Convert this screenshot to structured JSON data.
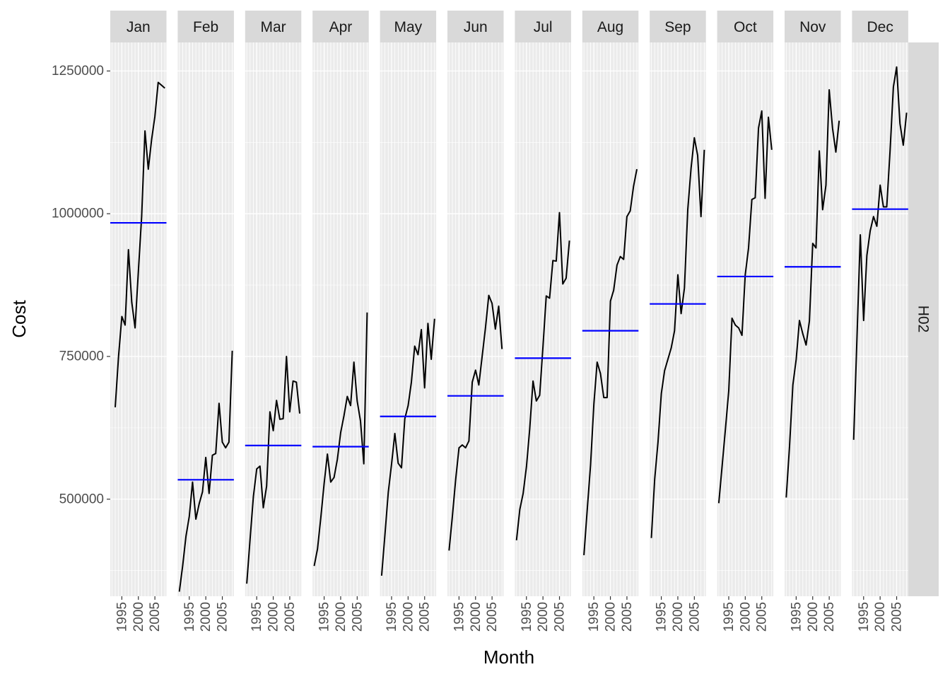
{
  "chart_data": {
    "type": "line",
    "facet_by": "month",
    "xlabel": "Month",
    "ylabel": "Cost",
    "row_strip": "H02",
    "x_tick_labels": [
      "1995",
      "2000",
      "2005"
    ],
    "y_ticks": [
      500000,
      750000,
      1000000,
      1250000
    ],
    "ylim": [
      330000,
      1300000
    ],
    "years": [
      1992,
      1993,
      1994,
      1995,
      1996,
      1997,
      1998,
      1999,
      2000,
      2001,
      2002,
      2003,
      2004,
      2005,
      2006,
      2007,
      2008
    ],
    "xlim": [
      1991.5,
      2008.5
    ],
    "grid": true,
    "line_color": "#000000",
    "mean_color": "#0000ff",
    "panel_bg": "#ebebeb",
    "strip_bg": "#d9d9d9",
    "panels": [
      {
        "month": "Jan",
        "mean": 984000,
        "values": [
          null,
          661000,
          750000,
          820000,
          805000,
          937000,
          845000,
          800000,
          900000,
          995000,
          1145000,
          1078000,
          1130000,
          1170000,
          1230000,
          1225000,
          1220000
        ]
      },
      {
        "month": "Feb",
        "mean": 534000,
        "values": [
          338000,
          383000,
          435000,
          470000,
          530000,
          465000,
          492000,
          513000,
          573000,
          510000,
          577000,
          580000,
          668000,
          600000,
          590000,
          600000,
          760000
        ]
      },
      {
        "month": "Mar",
        "mean": 594000,
        "values": [
          352000,
          430000,
          505000,
          553000,
          558000,
          485000,
          523000,
          653000,
          620000,
          673000,
          640000,
          641000,
          750000,
          653000,
          707000,
          705000,
          650000
        ]
      },
      {
        "month": "Apr",
        "mean": 592000,
        "values": [
          383000,
          413000,
          468000,
          528000,
          579000,
          530000,
          538000,
          570000,
          617000,
          646000,
          680000,
          664000,
          740000,
          672000,
          637000,
          562000,
          827000
        ]
      },
      {
        "month": "May",
        "mean": 645000,
        "values": [
          366000,
          438000,
          512000,
          562000,
          615000,
          563000,
          555000,
          641000,
          664000,
          705000,
          768000,
          753000,
          797000,
          695000,
          808000,
          745000,
          816000
        ]
      },
      {
        "month": "Jun",
        "mean": 681000,
        "values": [
          410000,
          470000,
          535000,
          590000,
          595000,
          590000,
          602000,
          705000,
          726000,
          700000,
          750000,
          800000,
          857000,
          843000,
          798000,
          838000,
          763000
        ]
      },
      {
        "month": "Jul",
        "mean": 747000,
        "values": [
          428000,
          482000,
          510000,
          557000,
          623000,
          707000,
          672000,
          682000,
          768000,
          856000,
          852000,
          918000,
          917000,
          1002000,
          877000,
          887000,
          953000
        ]
      },
      {
        "month": "Aug",
        "mean": 795000,
        "values": [
          402000,
          482000,
          560000,
          667000,
          740000,
          720000,
          678000,
          678000,
          847000,
          866000,
          910000,
          925000,
          920000,
          995000,
          1005000,
          1048000,
          1078000
        ]
      },
      {
        "month": "Sep",
        "mean": 842000,
        "values": [
          432000,
          535000,
          600000,
          685000,
          725000,
          745000,
          765000,
          795000,
          893000,
          825000,
          870000,
          1007000,
          1080000,
          1133000,
          1102000,
          995000,
          1112000
        ]
      },
      {
        "month": "Oct",
        "mean": 890000,
        "values": [
          493000,
          558000,
          623000,
          690000,
          817000,
          805000,
          800000,
          787000,
          893000,
          940000,
          1025000,
          1028000,
          1150000,
          1180000,
          1027000,
          1169000,
          1112000
        ]
      },
      {
        "month": "Nov",
        "mean": 907000,
        "values": [
          503000,
          593000,
          700000,
          745000,
          813000,
          790000,
          770000,
          812000,
          948000,
          940000,
          1110000,
          1007000,
          1050000,
          1217000,
          1150000,
          1108000,
          1163000
        ]
      },
      {
        "month": "Dec",
        "mean": 1008000,
        "values": [
          604000,
          783000,
          963000,
          813000,
          927000,
          970000,
          995000,
          978000,
          1050000,
          1012000,
          1012000,
          1110000,
          1222000,
          1257000,
          1158000,
          1120000,
          1177000
        ]
      }
    ]
  }
}
